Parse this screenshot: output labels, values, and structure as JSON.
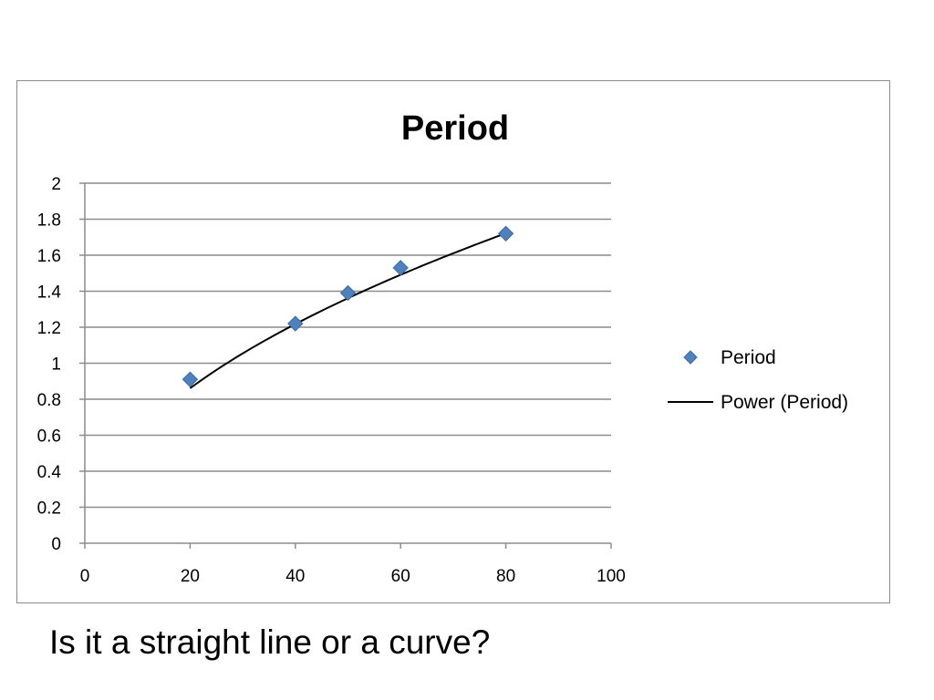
{
  "chart_data": {
    "type": "scatter",
    "title": "Period",
    "xlabel": "",
    "ylabel": "",
    "xlim": [
      0,
      100
    ],
    "ylim": [
      0,
      2
    ],
    "x_ticks": [
      "0",
      "20",
      "40",
      "60",
      "80",
      "100"
    ],
    "y_ticks": [
      "0",
      "0.2",
      "0.4",
      "0.6",
      "0.8",
      "1",
      "1.2",
      "1.4",
      "1.6",
      "1.8",
      "2"
    ],
    "grid": "horizontal",
    "legend_position": "right",
    "series": [
      {
        "name": "Period",
        "marker": "diamond",
        "color": "#4f81bd",
        "points": [
          {
            "x": 20,
            "y": 0.91
          },
          {
            "x": 40,
            "y": 1.22
          },
          {
            "x": 50,
            "y": 1.39
          },
          {
            "x": 60,
            "y": 1.53
          },
          {
            "x": 80,
            "y": 1.72
          }
        ]
      },
      {
        "name": "Power (Period)",
        "kind": "trendline",
        "color": "#000000",
        "fit": {
          "model": "power",
          "a": 0.1925,
          "b": 0.5
        }
      }
    ]
  },
  "caption": "Is it a straight line or a curve?"
}
